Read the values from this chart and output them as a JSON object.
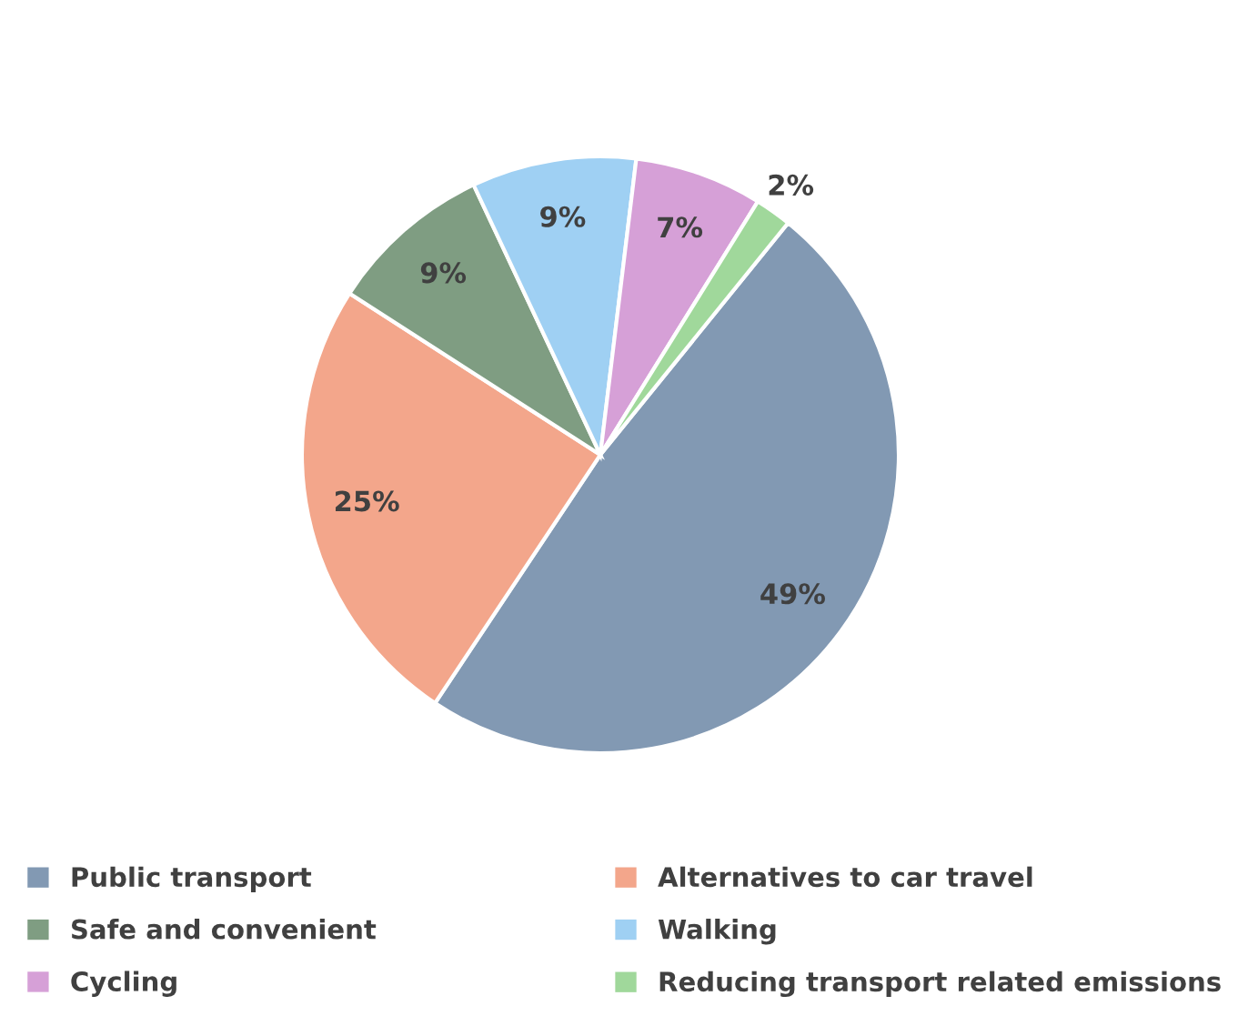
{
  "chart_data": {
    "type": "pie",
    "categories": [
      "Public transport",
      "Alternatives to car travel",
      "Safe and convenient",
      "Walking",
      "Cycling",
      "Reducing transport related emissions"
    ],
    "values": [
      49,
      25,
      9,
      9,
      7,
      2
    ],
    "value_labels": [
      "49%",
      "25%",
      "9%",
      "9%",
      "7%",
      "2%"
    ],
    "colors": [
      "#8299b3",
      "#f3a68b",
      "#7f9d82",
      "#9fd0f3",
      "#d6a0d7",
      "#a0d89b"
    ],
    "legend": "bottom"
  }
}
